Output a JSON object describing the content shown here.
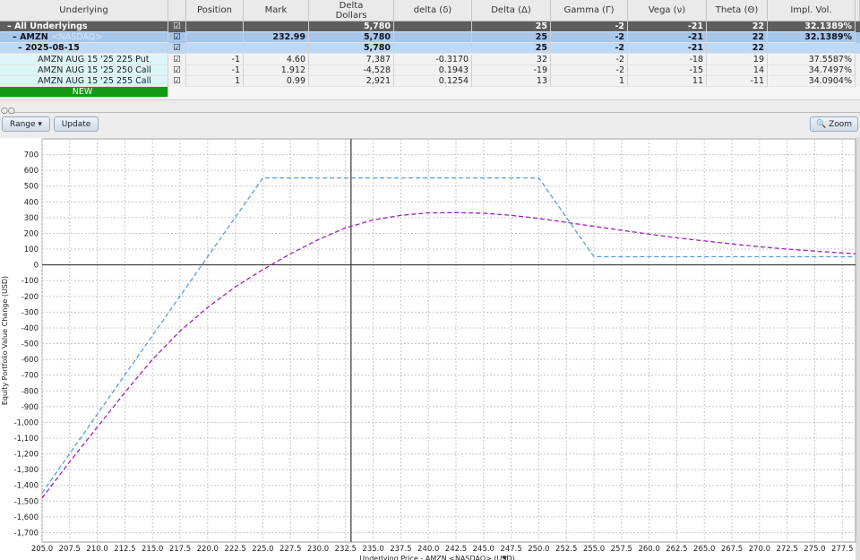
{
  "table": {
    "columns": [
      "Underlying",
      "Position",
      "Mark",
      "Delta Dollars",
      "delta (δ)",
      "Delta (Δ)",
      "Gamma (Γ)",
      "Vega (ν)",
      "Theta (Θ)",
      "Impl. Vol."
    ],
    "exchange": "<NASDAQ>",
    "rows": [
      [
        "All Underlyings",
        null,
        null,
        "5,780",
        null,
        "25",
        "-2",
        "-21",
        "22",
        "32.1389%"
      ],
      [
        "AMZN",
        null,
        "232.99",
        "5,780",
        null,
        "25",
        "-2",
        "-21",
        "22",
        "32.1389%"
      ],
      [
        "2025-08-15",
        null,
        null,
        "5,780",
        null,
        "25",
        "-2",
        "-21",
        "22",
        null
      ],
      [
        "AMZN AUG 15 '25 225 Put",
        "-1",
        "4.60",
        "7,387",
        "-0.3170",
        "32",
        "-2",
        "-18",
        "19",
        "37.5587%"
      ],
      [
        "AMZN AUG 15 '25 250 Call",
        "-1",
        "1.912",
        "-4,528",
        "0.1943",
        "-19",
        "-2",
        "-15",
        "14",
        "34.7497%"
      ],
      [
        "AMZN AUG 15 '25 255 Call",
        "1",
        "0.99",
        "2,921",
        "0.1254",
        "13",
        "1",
        "11",
        "-11",
        "34.0904%"
      ],
      [
        "NEW"
      ]
    ]
  },
  "toolbar": {
    "range": "Range",
    "update": "Update",
    "zoom": "Zoom"
  },
  "chart_data": {
    "type": "line",
    "x_label": "Underlying Price - AMZN <NASDAQ> (USD)",
    "y_label": "Equity Portfolio Value Change (USD)",
    "xlim": [
      205,
      278.7
    ],
    "ylim": [
      -1760,
      800
    ],
    "grid": true,
    "current_price": 232.99,
    "xticks": [
      {
        "value": 205,
        "label": "205.0"
      },
      {
        "value": 207.5,
        "label": "207.5"
      },
      {
        "value": 210,
        "label": "210.0"
      },
      {
        "value": 212.5,
        "label": "212.5"
      },
      {
        "value": 215,
        "label": "215.0"
      },
      {
        "value": 217.5,
        "label": "217.5"
      },
      {
        "value": 220,
        "label": "220.0"
      },
      {
        "value": 222.5,
        "label": "222.5"
      },
      {
        "value": 225,
        "label": "225.0"
      },
      {
        "value": 227.5,
        "label": "227.5"
      },
      {
        "value": 230,
        "label": "230.0"
      },
      {
        "value": 232.5,
        "label": "232.5"
      },
      {
        "value": 235,
        "label": "235.0"
      },
      {
        "value": 237.5,
        "label": "237.5"
      },
      {
        "value": 240,
        "label": "240.0"
      },
      {
        "value": 242.5,
        "label": "242.5"
      },
      {
        "value": 245,
        "label": "245.0"
      },
      {
        "value": 247.5,
        "label": "247.5"
      },
      {
        "value": 250,
        "label": "250.0"
      },
      {
        "value": 252.5,
        "label": "252.5"
      },
      {
        "value": 255,
        "label": "255.0"
      },
      {
        "value": 257.5,
        "label": "257.5"
      },
      {
        "value": 260,
        "label": "260.0"
      },
      {
        "value": 262.5,
        "label": "262.5"
      },
      {
        "value": 265,
        "label": "265.0"
      },
      {
        "value": 267.5,
        "label": "267.5"
      },
      {
        "value": 270,
        "label": "270.0"
      },
      {
        "value": 272.5,
        "label": "272.5"
      },
      {
        "value": 275,
        "label": "275.0"
      },
      {
        "value": 277.5,
        "label": "277.5"
      }
    ],
    "yticks": [
      {
        "value": -1700,
        "label": "-1,700"
      },
      {
        "value": -1600,
        "label": "-1,600"
      },
      {
        "value": -1500,
        "label": "-1,500"
      },
      {
        "value": -1400,
        "label": "-1,400"
      },
      {
        "value": -1300,
        "label": "-1,300"
      },
      {
        "value": -1200,
        "label": "-1,200"
      },
      {
        "value": -1100,
        "label": "-1,100"
      },
      {
        "value": -1000,
        "label": "-1,000"
      },
      -900,
      -800,
      -700,
      -600,
      -500,
      -400,
      -300,
      -200,
      -100,
      0,
      100,
      200,
      300,
      400,
      500,
      600,
      700
    ],
    "series": [
      {
        "color": "#5b9be0",
        "x": [
          205,
          225,
          250,
          255,
          278.7
        ],
        "values": [
          -1448,
          552,
          552,
          52,
          52
        ]
      },
      {
        "color": "#a020c0",
        "x": [
          205,
          207.5,
          210,
          212.5,
          215,
          217.5,
          220,
          222.5,
          225,
          227.5,
          230,
          232.5,
          235,
          237.5,
          240,
          242.5,
          245,
          247.5,
          250,
          252.5,
          255,
          257.5,
          260,
          262.5,
          265,
          267.5,
          270,
          272.5,
          275,
          277.5,
          278.7
        ],
        "values": [
          -1480,
          -1250,
          -1030,
          -810,
          -600,
          -420,
          -270,
          -140,
          -30,
          70,
          160,
          235,
          285,
          315,
          330,
          332,
          328,
          315,
          295,
          270,
          245,
          220,
          195,
          172,
          152,
          133,
          115,
          100,
          88,
          76,
          70
        ]
      }
    ]
  }
}
